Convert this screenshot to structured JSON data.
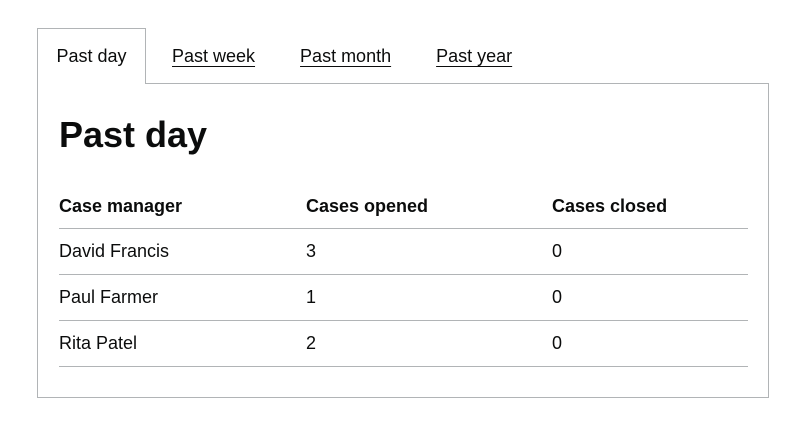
{
  "tabs": [
    {
      "label": "Past day",
      "selected": true
    },
    {
      "label": "Past week",
      "selected": false
    },
    {
      "label": "Past month",
      "selected": false
    },
    {
      "label": "Past year",
      "selected": false
    }
  ],
  "panel": {
    "title": "Past day",
    "table": {
      "headers": [
        "Case manager",
        "Cases opened",
        "Cases closed"
      ],
      "rows": [
        [
          "David Francis",
          "3",
          "0"
        ],
        [
          "Paul Farmer",
          "1",
          "0"
        ],
        [
          "Rita Patel",
          "2",
          "0"
        ]
      ]
    }
  },
  "colors": {
    "text": "#0b0c0c",
    "border": "#b1b4b6",
    "background": "#ffffff"
  }
}
